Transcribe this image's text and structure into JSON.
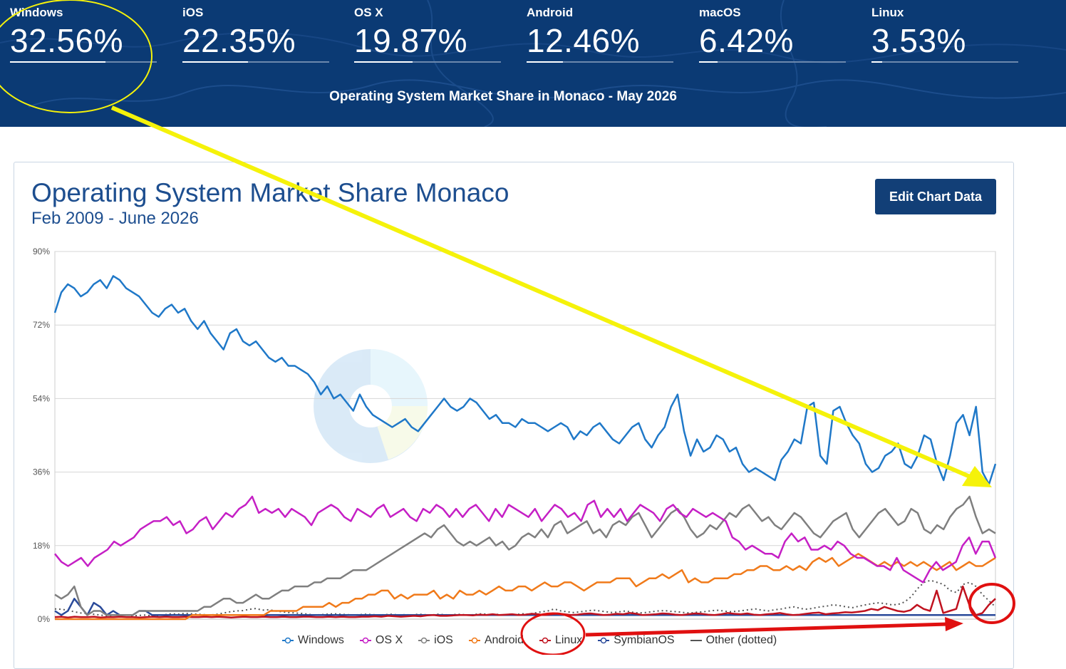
{
  "banner": {
    "stats": [
      {
        "name": "Windows",
        "value": "32.56%",
        "share": 32.56
      },
      {
        "name": "iOS",
        "value": "22.35%",
        "share": 22.35
      },
      {
        "name": "OS X",
        "value": "19.87%",
        "share": 19.87
      },
      {
        "name": "Android",
        "value": "12.46%",
        "share": 12.46
      },
      {
        "name": "macOS",
        "value": "6.42%",
        "share": 6.42
      },
      {
        "name": "Linux",
        "value": "3.53%",
        "share": 3.53
      }
    ],
    "subtitle": "Operating System Market Share in Monaco - May 2026"
  },
  "card": {
    "title": "Operating System Market Share Monaco",
    "range": "Feb 2009 - June 2026",
    "edit_label": "Edit Chart Data"
  },
  "colors": {
    "Windows": "#1f78c8",
    "OS X": "#c51fc5",
    "iOS": "#7f7f7f",
    "Android": "#f07a1a",
    "Linux": "#c0121f",
    "SymbianOS": "#2a4a9a",
    "Other (dotted)": "#555555",
    "banner": "#0b3a74",
    "annotation_yellow": "#f5f20a",
    "annotation_red": "#e01010"
  },
  "chart_data": {
    "type": "line",
    "x_start": "2009-02",
    "x_end": "2026-06",
    "ylim": [
      0,
      90
    ],
    "yticks": [
      "0%",
      "18%",
      "36%",
      "54%",
      "72%",
      "90%"
    ],
    "grid": true,
    "legend_position": "bottom",
    "series": [
      {
        "name": "Windows",
        "values": [
          75,
          80,
          82,
          81,
          79,
          80,
          82,
          83,
          81,
          84,
          83,
          81,
          80,
          79,
          77,
          75,
          74,
          76,
          77,
          75,
          76,
          73,
          71,
          73,
          70,
          68,
          66,
          70,
          71,
          68,
          67,
          68,
          66,
          64,
          63,
          64,
          62,
          62,
          61,
          60,
          58,
          55,
          57,
          54,
          55,
          53,
          51,
          55,
          52,
          50,
          49,
          48,
          47,
          48,
          49,
          47,
          46,
          48,
          50,
          52,
          54,
          52,
          51,
          52,
          54,
          53,
          51,
          49,
          50,
          48,
          48,
          47,
          49,
          48,
          48,
          47,
          46,
          47,
          48,
          47,
          44,
          46,
          45,
          47,
          48,
          46,
          44,
          43,
          45,
          47,
          48,
          44,
          42,
          45,
          47,
          52,
          55,
          46,
          40,
          44,
          41,
          42,
          45,
          44,
          41,
          42,
          38,
          36,
          37,
          36,
          35,
          34,
          39,
          41,
          44,
          43,
          52,
          53,
          40,
          38,
          51,
          52,
          48,
          45,
          43,
          38,
          36,
          37,
          40,
          41,
          43,
          38,
          37,
          40,
          45,
          44,
          38,
          34,
          40,
          48,
          50,
          45,
          52,
          36,
          33,
          38
        ]
      },
      {
        "name": "OS X",
        "values": [
          16,
          14,
          13,
          14,
          15,
          13,
          15,
          16,
          17,
          19,
          18,
          19,
          20,
          22,
          23,
          24,
          24,
          25,
          23,
          24,
          21,
          22,
          24,
          25,
          22,
          24,
          26,
          25,
          27,
          28,
          30,
          26,
          27,
          26,
          27,
          25,
          27,
          26,
          25,
          23,
          26,
          27,
          28,
          27,
          25,
          24,
          27,
          26,
          25,
          27,
          28,
          25,
          26,
          27,
          25,
          24,
          27,
          26,
          28,
          27,
          25,
          27,
          25,
          27,
          28,
          26,
          24,
          27,
          25,
          28,
          27,
          26,
          25,
          27,
          24,
          26,
          28,
          27,
          25,
          26,
          24,
          28,
          29,
          25,
          27,
          25,
          27,
          24,
          26,
          28,
          27,
          26,
          24,
          27,
          28,
          26,
          25,
          27,
          26,
          25,
          26,
          25,
          24,
          20,
          19,
          17,
          18,
          17,
          16,
          16,
          15,
          19,
          21,
          19,
          20,
          17,
          17,
          18,
          17,
          19,
          18,
          16,
          15,
          15,
          14,
          13,
          13,
          12,
          15,
          12,
          11,
          10,
          9,
          12,
          14,
          12,
          13,
          14,
          18,
          20,
          16,
          19,
          19,
          15
        ]
      },
      {
        "name": "iOS",
        "values": [
          6,
          5,
          6,
          8,
          3,
          1,
          2,
          2,
          1,
          1,
          1,
          1,
          1,
          2,
          2,
          2,
          2,
          2,
          2,
          2,
          2,
          2,
          2,
          3,
          3,
          4,
          5,
          5,
          4,
          4,
          5,
          6,
          5,
          5,
          6,
          7,
          7,
          8,
          8,
          8,
          9,
          9,
          10,
          10,
          10,
          11,
          12,
          12,
          12,
          13,
          14,
          15,
          16,
          17,
          18,
          19,
          20,
          21,
          20,
          22,
          23,
          21,
          19,
          18,
          19,
          18,
          19,
          20,
          18,
          19,
          17,
          18,
          20,
          21,
          20,
          22,
          20,
          23,
          24,
          21,
          22,
          23,
          24,
          21,
          22,
          20,
          23,
          24,
          23,
          25,
          26,
          23,
          20,
          22,
          24,
          26,
          27,
          25,
          22,
          20,
          21,
          23,
          22,
          24,
          26,
          25,
          27,
          28,
          26,
          24,
          25,
          23,
          22,
          24,
          26,
          25,
          23,
          21,
          20,
          22,
          24,
          25,
          26,
          22,
          20,
          22,
          24,
          26,
          27,
          25,
          23,
          24,
          27,
          26,
          22,
          21,
          23,
          22,
          25,
          27,
          28,
          30,
          25,
          21,
          22,
          21
        ]
      },
      {
        "name": "Android",
        "values": [
          0,
          0,
          0,
          0,
          0,
          0,
          0,
          0,
          0,
          0,
          0,
          0,
          0,
          0,
          0,
          0,
          0,
          0,
          0,
          0,
          0,
          1,
          1,
          1,
          1,
          1,
          1,
          1,
          1,
          1,
          1,
          1,
          1,
          2,
          2,
          2,
          2,
          2,
          3,
          3,
          3,
          3,
          4,
          3,
          4,
          4,
          5,
          5,
          6,
          6,
          7,
          7,
          5,
          6,
          5,
          6,
          6,
          6,
          7,
          5,
          6,
          5,
          7,
          6,
          6,
          7,
          6,
          7,
          8,
          7,
          7,
          8,
          8,
          7,
          8,
          9,
          8,
          8,
          9,
          9,
          8,
          7,
          8,
          9,
          9,
          9,
          10,
          10,
          10,
          8,
          9,
          10,
          10,
          11,
          10,
          11,
          12,
          9,
          10,
          9,
          9,
          10,
          10,
          10,
          11,
          11,
          12,
          12,
          13,
          13,
          12,
          12,
          13,
          12,
          13,
          12,
          14,
          15,
          14,
          15,
          13,
          14,
          15,
          16,
          15,
          14,
          13,
          14,
          13,
          14,
          13,
          14,
          13,
          14,
          13,
          12,
          13,
          14,
          12,
          13,
          14,
          13,
          13,
          14,
          15
        ]
      },
      {
        "name": "Linux",
        "values": [
          0.5,
          0.6,
          0.4,
          0.6,
          0.5,
          0.5,
          0.6,
          0.4,
          0.5,
          0.5,
          0.6,
          0.5,
          0.5,
          0.4,
          0.5,
          0.6,
          0.5,
          0.6,
          0.5,
          0.5,
          0.6,
          0.5,
          0.5,
          0.6,
          0.5,
          0.6,
          0.5,
          0.4,
          0.5,
          0.6,
          0.5,
          0.5,
          0.6,
          0.5,
          0.5,
          0.6,
          0.5,
          0.5,
          0.6,
          0.6,
          0.5,
          0.5,
          0.6,
          0.5,
          0.6,
          0.5,
          0.5,
          0.6,
          0.6,
          0.7,
          0.6,
          0.8,
          0.7,
          0.6,
          0.7,
          0.8,
          0.7,
          0.9,
          1.0,
          0.8,
          0.8,
          0.9,
          1.0,
          1.0,
          0.9,
          1.1,
          1.0,
          1.2,
          1.0,
          1.1,
          1.2,
          1.0,
          1.1,
          1.3,
          1.2,
          1.0,
          1.2,
          1.4,
          1.2,
          1.0,
          1.1,
          1.3,
          1.4,
          1.2,
          1.0,
          1.1,
          1.3,
          1.2,
          1.5,
          1.3,
          1.0,
          1.1,
          1.2,
          1.4,
          1.3,
          1.1,
          1.0,
          1.2,
          1.4,
          1.3,
          1.1,
          1.0,
          1.2,
          1.5,
          1.3,
          1.2,
          1.4,
          1.1,
          1.0,
          1.2,
          1.3,
          1.5,
          1.2,
          1.0,
          1.1,
          1.3,
          1.5,
          1.6,
          1.2,
          1.4,
          1.5,
          1.7,
          1.6,
          1.8,
          2.0,
          2.5,
          2.2,
          3.0,
          2.5,
          2.0,
          1.8,
          2.2,
          3.5,
          2.5,
          2.0,
          7.0,
          1.5,
          2.0,
          2.5,
          8.0,
          3.5,
          1.0,
          1.5,
          3.5,
          5.0
        ]
      },
      {
        "name": "SymbianOS",
        "values": [
          2,
          1,
          2,
          5,
          3,
          1,
          4,
          3,
          1,
          2,
          1,
          1,
          1,
          2,
          2,
          1,
          1,
          1,
          1,
          1,
          1,
          1,
          1,
          1,
          1,
          1,
          1,
          1,
          1,
          1,
          1,
          1,
          1,
          1,
          1,
          1,
          1,
          1,
          1,
          1,
          1,
          1,
          1,
          1,
          1,
          1,
          1,
          1,
          1,
          1,
          1,
          1,
          1,
          1,
          1,
          1,
          1,
          1,
          1,
          1,
          1,
          1,
          1,
          1,
          1,
          1,
          1,
          1,
          1,
          1,
          1,
          1,
          1,
          1,
          1,
          1,
          1,
          1,
          1,
          1,
          1,
          1,
          1,
          1,
          1,
          1,
          1,
          1,
          1,
          1,
          1,
          1,
          1,
          1,
          1,
          1,
          1,
          1,
          1,
          1,
          1,
          1,
          1,
          1,
          1,
          1,
          1,
          1,
          1,
          1,
          1,
          1,
          1,
          1,
          1,
          1,
          1,
          1,
          1,
          1,
          1,
          1,
          1,
          1,
          1,
          1,
          1,
          1,
          1,
          1,
          1,
          1,
          1,
          1,
          1,
          1,
          1,
          1,
          1,
          1,
          1,
          1,
          1,
          1,
          1,
          1
        ]
      },
      {
        "name": "Other (dotted)",
        "values": [
          2.5,
          2.4,
          2.2,
          1.8,
          1.5,
          1.4,
          1.2,
          1.0,
          0.8,
          0.9,
          1.1,
          1.0,
          0.8,
          0.9,
          1.0,
          0.8,
          0.9,
          1.1,
          1.3,
          1.2,
          1.4,
          1.3,
          1.2,
          1.1,
          1.0,
          1.2,
          1.5,
          1.8,
          2.0,
          2.1,
          2.4,
          2.6,
          2.2,
          2.3,
          2.0,
          1.8,
          1.6,
          1.5,
          1.4,
          1.2,
          1.0,
          1.1,
          1.2,
          1.3,
          1.2,
          1.1,
          1.0,
          1.1,
          1.2,
          1.1,
          1.0,
          1.1,
          1.2,
          1.0,
          1.1,
          1.0,
          1.2,
          1.1,
          1.0,
          1.2,
          1.1,
          1.0,
          1.2,
          1.1,
          1.0,
          1.2,
          1.3,
          1.1,
          1.2,
          1.0,
          1.2,
          1.1,
          1.3,
          1.2,
          1.5,
          1.8,
          2.0,
          2.5,
          2.0,
          1.8,
          1.6,
          1.8,
          2.0,
          2.2,
          2.0,
          1.8,
          1.6,
          1.8,
          2.0,
          1.7,
          1.5,
          1.6,
          1.8,
          2.0,
          2.1,
          1.9,
          1.8,
          1.6,
          1.5,
          1.7,
          1.8,
          2.0,
          2.2,
          2.0,
          1.8,
          1.9,
          2.1,
          2.3,
          2.5,
          2.2,
          2.0,
          2.3,
          2.5,
          2.8,
          3.0,
          2.6,
          2.4,
          2.7,
          3.0,
          3.2,
          3.5,
          3.3,
          3.0,
          2.8,
          3.2,
          3.5,
          3.8,
          4.0,
          3.8,
          3.5,
          3.6,
          4.2,
          5.5,
          7.5,
          9.0,
          9.5,
          9.0,
          8.5,
          7.0,
          6.5,
          8.5,
          9.0,
          8.0,
          6.0,
          4.5,
          3.0
        ]
      }
    ]
  }
}
